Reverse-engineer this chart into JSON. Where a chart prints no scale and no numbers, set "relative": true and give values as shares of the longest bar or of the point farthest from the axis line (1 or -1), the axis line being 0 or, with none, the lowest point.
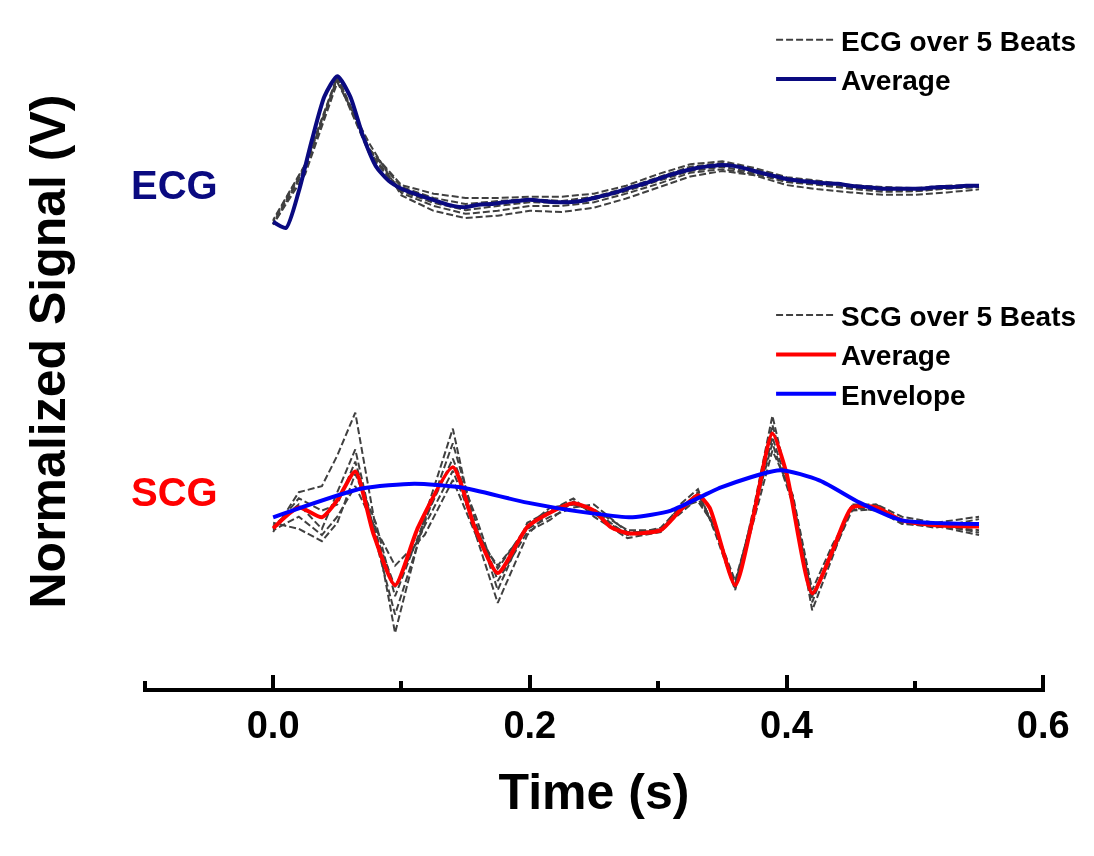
{
  "chart_data": {
    "type": "line",
    "relative": true,
    "xlabel": "Time (s)",
    "ylabel": "Normalized Signal (V)",
    "xlim": [
      -0.1,
      0.6
    ],
    "xticks": [
      {
        "value": -0.1,
        "label": null
      },
      {
        "value": 0,
        "label": "0.0"
      },
      {
        "value": 0.1,
        "label": null
      },
      0.2,
      {
        "value": 0.3,
        "label": null
      },
      0.4,
      {
        "value": 0.5,
        "label": null
      },
      0.6
    ],
    "legend": "top right",
    "grid": false,
    "line_style": "solid",
    "annotations": [
      "ECG",
      "SCG"
    ],
    "series": [
      {
        "name": "ECG over 5 Beats",
        "color": "#404040",
        "line_style": "dashed",
        "x": [
          0,
          0.025,
          0.05,
          0.075,
          0.1,
          0.125,
          0.15,
          0.175,
          0.2,
          0.225,
          0.25,
          0.275,
          0.3,
          0.325,
          0.35,
          0.375,
          0.4,
          0.425,
          0.45,
          0.475,
          0.5,
          0.525,
          0.55
        ],
        "values": [
          0.765,
          0.856,
          1.0,
          0.881,
          0.822,
          0.808,
          0.801,
          0.801,
          0.803,
          0.803,
          0.808,
          0.821,
          0.84,
          0.856,
          0.861,
          0.85,
          0.835,
          0.829,
          0.822,
          0.819,
          0.817,
          0.821,
          0.822
        ]
      },
      {
        "color": "#404040",
        "line_style": "dashed",
        "x": [
          0,
          0.025,
          0.05,
          0.075,
          0.1,
          0.125,
          0.15,
          0.175,
          0.2,
          0.225,
          0.25,
          0.275,
          0.3,
          0.325,
          0.35,
          0.375,
          0.4,
          0.425,
          0.45,
          0.475,
          0.5,
          0.525,
          0.55
        ],
        "values": [
          0.757,
          0.848,
          0.995,
          0.873,
          0.809,
          0.788,
          0.775,
          0.78,
          0.788,
          0.788,
          0.794,
          0.808,
          0.824,
          0.842,
          0.848,
          0.84,
          0.827,
          0.822,
          0.816,
          0.811,
          0.812,
          0.816,
          0.819
        ]
      },
      {
        "color": "#404040",
        "line_style": "dashed",
        "x": [
          0,
          0.025,
          0.05,
          0.075,
          0.1,
          0.125,
          0.15,
          0.175,
          0.2,
          0.225,
          0.25,
          0.275,
          0.3,
          0.325,
          0.35,
          0.375,
          0.4,
          0.425,
          0.45,
          0.475,
          0.5,
          0.525,
          0.55
        ],
        "values": [
          0.758,
          0.84,
          0.99,
          0.89,
          0.805,
          0.78,
          0.768,
          0.772,
          0.78,
          0.778,
          0.785,
          0.8,
          0.818,
          0.836,
          0.845,
          0.838,
          0.822,
          0.815,
          0.81,
          0.806,
          0.806,
          0.81,
          0.815
        ]
      },
      {
        "color": "#404040",
        "line_style": "dashed",
        "x": [
          0,
          0.025,
          0.05,
          0.075,
          0.1,
          0.125,
          0.15,
          0.175,
          0.2,
          0.225,
          0.25,
          0.275,
          0.3,
          0.325,
          0.35,
          0.375,
          0.4,
          0.425,
          0.45,
          0.475,
          0.5,
          0.525,
          0.55
        ],
        "values": [
          0.76,
          0.852,
          0.997,
          0.876,
          0.812,
          0.793,
          0.781,
          0.788,
          0.794,
          0.793,
          0.799,
          0.812,
          0.829,
          0.845,
          0.852,
          0.842,
          0.829,
          0.824,
          0.817,
          0.814,
          0.812,
          0.817,
          0.819
        ]
      },
      {
        "color": "#404040",
        "line_style": "dashed",
        "x": [
          0,
          0.025,
          0.05,
          0.075,
          0.1,
          0.125,
          0.15,
          0.175,
          0.2,
          0.225,
          0.25,
          0.275,
          0.3,
          0.325,
          0.35,
          0.375,
          0.4,
          0.425,
          0.45,
          0.475,
          0.5,
          0.525,
          0.55
        ],
        "values": [
          0.763,
          0.855,
          0.998,
          0.879,
          0.819,
          0.801,
          0.791,
          0.796,
          0.799,
          0.796,
          0.803,
          0.817,
          0.835,
          0.852,
          0.858,
          0.848,
          0.834,
          0.827,
          0.821,
          0.817,
          0.816,
          0.819,
          0.821
        ]
      },
      {
        "name": "Average",
        "color": "#0a0a80",
        "x": [
          0,
          0.01,
          0.02,
          0.03,
          0.04,
          0.05,
          0.06,
          0.07,
          0.08,
          0.09,
          0.1,
          0.11,
          0.12,
          0.13,
          0.14,
          0.15,
          0.16,
          0.17,
          0.18,
          0.19,
          0.2,
          0.21,
          0.22,
          0.23,
          0.24,
          0.25,
          0.26,
          0.27,
          0.28,
          0.29,
          0.3,
          0.31,
          0.32,
          0.33,
          0.34,
          0.35,
          0.36,
          0.37,
          0.38,
          0.39,
          0.4,
          0.41,
          0.42,
          0.43,
          0.44,
          0.45,
          0.46,
          0.47,
          0.48,
          0.49,
          0.5,
          0.51,
          0.52,
          0.53,
          0.54,
          0.55
        ],
        "values": [
          0.762,
          0.752,
          0.812,
          0.894,
          0.967,
          1.0,
          0.967,
          0.902,
          0.853,
          0.829,
          0.816,
          0.808,
          0.801,
          0.794,
          0.788,
          0.786,
          0.79,
          0.791,
          0.794,
          0.796,
          0.798,
          0.796,
          0.794,
          0.794,
          0.796,
          0.801,
          0.806,
          0.812,
          0.819,
          0.825,
          0.832,
          0.839,
          0.845,
          0.85,
          0.853,
          0.855,
          0.853,
          0.848,
          0.842,
          0.837,
          0.832,
          0.829,
          0.827,
          0.825,
          0.824,
          0.821,
          0.819,
          0.817,
          0.816,
          0.816,
          0.816,
          0.817,
          0.819,
          0.819,
          0.821,
          0.821
        ]
      },
      {
        "name": "SCG over 5 Beats",
        "color": "#404040",
        "line_style": "dashed",
        "x": [
          0,
          0.02,
          0.038,
          0.05,
          0.064,
          0.08,
          0.095,
          0.118,
          0.14,
          0.158,
          0.175,
          0.198,
          0.216,
          0.234,
          0.25,
          0.276,
          0.302,
          0.317,
          0.331,
          0.345,
          0.36,
          0.374,
          0.389,
          0.405,
          0.42,
          0.436,
          0.451,
          0.47,
          0.49,
          0.516,
          0.55
        ],
        "values": [
          0.255,
          0.32,
          0.33,
          0.38,
          0.45,
          0.26,
          0.09,
          0.28,
          0.424,
          0.25,
          0.139,
          0.25,
          0.29,
          0.31,
          0.28,
          0.245,
          0.255,
          0.3,
          0.325,
          0.25,
          0.16,
          0.29,
          0.445,
          0.3,
          0.127,
          0.215,
          0.3,
          0.3,
          0.27,
          0.262,
          0.276
        ]
      },
      {
        "color": "#404040",
        "line_style": "dashed",
        "x": [
          0,
          0.02,
          0.038,
          0.05,
          0.064,
          0.08,
          0.095,
          0.118,
          0.14,
          0.158,
          0.175,
          0.198,
          0.216,
          0.234,
          0.25,
          0.276,
          0.302,
          0.317,
          0.331,
          0.345,
          0.36,
          0.374,
          0.389,
          0.405,
          0.42,
          0.436,
          0.451,
          0.47,
          0.49,
          0.516,
          0.55
        ],
        "values": [
          0.265,
          0.3,
          0.26,
          0.32,
          0.39,
          0.24,
          0.12,
          0.27,
          0.4,
          0.27,
          0.16,
          0.27,
          0.29,
          0.3,
          0.29,
          0.25,
          0.26,
          0.285,
          0.31,
          0.26,
          0.165,
          0.275,
          0.43,
          0.31,
          0.14,
          0.23,
          0.295,
          0.29,
          0.275,
          0.268,
          0.254
        ]
      },
      {
        "color": "#404040",
        "line_style": "dashed",
        "x": [
          0,
          0.02,
          0.038,
          0.05,
          0.064,
          0.08,
          0.095,
          0.118,
          0.14,
          0.158,
          0.175,
          0.198,
          0.216,
          0.234,
          0.25,
          0.276,
          0.302,
          0.317,
          0.331,
          0.345,
          0.36,
          0.374,
          0.389,
          0.405,
          0.42,
          0.436,
          0.451,
          0.47,
          0.49,
          0.516,
          0.55
        ],
        "values": [
          0.258,
          0.28,
          0.25,
          0.28,
          0.33,
          0.26,
          0.2,
          0.25,
          0.34,
          0.25,
          0.2,
          0.26,
          0.28,
          0.295,
          0.3,
          0.255,
          0.255,
          0.29,
          0.32,
          0.255,
          0.17,
          0.285,
          0.4,
          0.3,
          0.148,
          0.22,
          0.29,
          0.3,
          0.28,
          0.27,
          0.28
        ]
      },
      {
        "color": "#404040",
        "line_style": "dashed",
        "x": [
          0,
          0.02,
          0.038,
          0.05,
          0.064,
          0.08,
          0.095,
          0.118,
          0.14,
          0.158,
          0.175,
          0.198,
          0.216,
          0.234,
          0.25,
          0.276,
          0.302,
          0.317,
          0.331,
          0.345,
          0.36,
          0.374,
          0.389,
          0.405,
          0.42,
          0.436,
          0.451,
          0.47,
          0.49,
          0.516,
          0.55
        ],
        "values": [
          0.27,
          0.26,
          0.24,
          0.27,
          0.35,
          0.27,
          0.15,
          0.275,
          0.375,
          0.28,
          0.175,
          0.255,
          0.275,
          0.305,
          0.285,
          0.25,
          0.262,
          0.295,
          0.305,
          0.262,
          0.163,
          0.27,
          0.388,
          0.315,
          0.16,
          0.235,
          0.29,
          0.292,
          0.268,
          0.265,
          0.25
        ]
      },
      {
        "color": "#404040",
        "line_style": "dashed",
        "x": [
          0,
          0.02,
          0.038,
          0.05,
          0.064,
          0.08,
          0.095,
          0.118,
          0.14,
          0.158,
          0.175,
          0.198,
          0.216,
          0.234,
          0.25,
          0.276,
          0.302,
          0.317,
          0.331,
          0.345,
          0.36,
          0.374,
          0.389,
          0.405,
          0.42,
          0.436,
          0.451,
          0.47,
          0.49,
          0.516,
          0.55
        ],
        "values": [
          0.26,
          0.31,
          0.29,
          0.3,
          0.37,
          0.25,
          0.165,
          0.265,
          0.355,
          0.26,
          0.195,
          0.265,
          0.295,
          0.3,
          0.292,
          0.258,
          0.258,
          0.288,
          0.318,
          0.258,
          0.175,
          0.28,
          0.41,
          0.305,
          0.15,
          0.225,
          0.298,
          0.296,
          0.272,
          0.264,
          0.258
        ]
      },
      {
        "name": "Average",
        "color": "#ff0000",
        "x": [
          0,
          0.02,
          0.038,
          0.05,
          0.064,
          0.078,
          0.095,
          0.113,
          0.14,
          0.157,
          0.175,
          0.198,
          0.216,
          0.234,
          0.25,
          0.263,
          0.276,
          0.302,
          0.317,
          0.331,
          0.34,
          0.36,
          0.374,
          0.389,
          0.4,
          0.42,
          0.436,
          0.451,
          0.47,
          0.49,
          0.516,
          0.55
        ],
        "values": [
          0.261,
          0.295,
          0.279,
          0.307,
          0.354,
          0.253,
          0.168,
          0.263,
          0.361,
          0.263,
          0.188,
          0.263,
          0.287,
          0.302,
          0.29,
          0.263,
          0.253,
          0.258,
          0.29,
          0.315,
          0.295,
          0.168,
          0.279,
          0.416,
          0.351,
          0.155,
          0.225,
          0.295,
          0.295,
          0.274,
          0.266,
          0.264
        ]
      },
      {
        "name": "Envelope",
        "color": "#0000ff",
        "x": [
          0,
          0.069,
          0.11,
          0.146,
          0.198,
          0.25,
          0.28,
          0.31,
          0.349,
          0.395,
          0.426,
          0.457,
          0.49,
          0.55
        ],
        "values": [
          0.279,
          0.326,
          0.334,
          0.328,
          0.303,
          0.285,
          0.279,
          0.29,
          0.328,
          0.356,
          0.339,
          0.303,
          0.274,
          0.268
        ]
      }
    ]
  }
}
